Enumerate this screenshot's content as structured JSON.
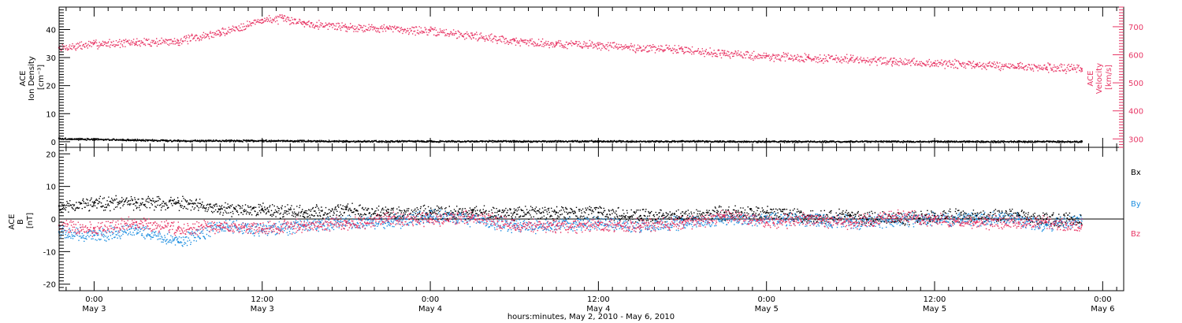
{
  "colors": {
    "black": "#000000",
    "velocity": "#e83766",
    "by": "#1f8fe0",
    "bz": "#e83766"
  },
  "x_axis": {
    "label": "hours:minutes, May  2, 2010 - May  6, 2010",
    "ticks": [
      {
        "hours": 0,
        "time": "0:00",
        "date": "May 3"
      },
      {
        "hours": 12,
        "time": "12:00",
        "date": "May 3"
      },
      {
        "hours": 24,
        "time": "0:00",
        "date": "May 4"
      },
      {
        "hours": 36,
        "time": "12:00",
        "date": "May 4"
      },
      {
        "hours": 48,
        "time": "0:00",
        "date": "May 5"
      },
      {
        "hours": 60,
        "time": "12:00",
        "date": "May 5"
      },
      {
        "hours": 72,
        "time": "0:00",
        "date": "May 6"
      }
    ]
  },
  "top_panel": {
    "left_label_lines": [
      "ACE",
      "Ion Density",
      "[cm⁻³]"
    ],
    "right_label_lines": [
      "ACE",
      "Velocity",
      "[km/s]"
    ],
    "left_ticks": [
      "0",
      "10",
      "20",
      "30",
      "40"
    ],
    "right_ticks": [
      "300",
      "400",
      "500",
      "600",
      "700"
    ]
  },
  "bottom_panel": {
    "left_label_lines": [
      "ACE",
      "B",
      "[nT]"
    ],
    "ticks": [
      "-20",
      "-10",
      "0",
      "10",
      "20"
    ],
    "legend": [
      "Bx",
      "By",
      "Bz"
    ]
  },
  "chart_data": [
    {
      "type": "scatter",
      "title": "",
      "xlabel": "hours:minutes, May  2, 2010 - May  6, 2010",
      "x_units": "hours from May 3 0:00 UT",
      "xlim": [
        -2.5,
        73.5
      ],
      "series": [
        {
          "name": "Ion Density",
          "axis": "left",
          "ylim": [
            -2,
            48
          ],
          "ylabel": "Ion Density [cm⁻³]",
          "x": [
            -2.5,
            0,
            6,
            12,
            18,
            24,
            30,
            36,
            42,
            48,
            54,
            60,
            66,
            70.5
          ],
          "y": [
            1.2,
            1.0,
            0.5,
            0.5,
            0.3,
            0.3,
            0.3,
            0.3,
            0.3,
            0.2,
            0.2,
            0.2,
            0.2,
            0.2
          ]
        },
        {
          "name": "Velocity",
          "axis": "right",
          "ylim": [
            270,
            770
          ],
          "ylabel": "Velocity [km/s]",
          "x": [
            -2.5,
            0,
            3,
            6,
            9,
            12,
            13.5,
            15,
            18,
            21,
            24,
            27,
            30,
            33,
            36,
            39,
            42,
            45,
            48,
            51,
            54,
            57,
            60,
            63,
            66,
            68,
            70.5
          ],
          "y": [
            625,
            640,
            645,
            650,
            680,
            725,
            730,
            715,
            700,
            695,
            685,
            670,
            650,
            640,
            635,
            625,
            620,
            605,
            595,
            590,
            585,
            575,
            570,
            565,
            560,
            555,
            550
          ]
        }
      ]
    },
    {
      "type": "scatter",
      "title": "",
      "xlabel": "hours:minutes, May  2, 2010 - May  6, 2010",
      "x_units": "hours from May 3 0:00 UT",
      "xlim": [
        -2.5,
        73.5
      ],
      "ylim": [
        -22,
        22
      ],
      "ylabel": "B [nT]",
      "series": [
        {
          "name": "Bx",
          "x": [
            -2.5,
            0,
            3,
            6,
            9,
            12,
            15,
            18,
            21,
            24,
            27,
            30,
            33,
            36,
            39,
            42,
            45,
            48,
            51,
            54,
            57,
            60,
            63,
            66,
            68,
            70.5
          ],
          "y": [
            4,
            5,
            5,
            5,
            3,
            3,
            2,
            3,
            2,
            2,
            2,
            2,
            2,
            2,
            1,
            1,
            2,
            2,
            1,
            1,
            0,
            1,
            1,
            1,
            0,
            0
          ]
        },
        {
          "name": "By",
          "x": [
            -2.5,
            0,
            3,
            6,
            9,
            12,
            15,
            18,
            21,
            24,
            27,
            30,
            33,
            36,
            39,
            42,
            45,
            48,
            51,
            54,
            57,
            60,
            63,
            66,
            68,
            70.5
          ],
          "y": [
            -4,
            -5,
            -3,
            -7,
            -2,
            -3,
            -2,
            -1,
            -1,
            1,
            0,
            -2,
            -2,
            -1,
            -2,
            -1,
            0,
            0,
            0,
            -1,
            0,
            0,
            0,
            0,
            -2,
            0
          ]
        },
        {
          "name": "Bz",
          "x": [
            -2.5,
            0,
            3,
            6,
            9,
            12,
            15,
            18,
            21,
            24,
            27,
            30,
            33,
            36,
            39,
            42,
            45,
            48,
            51,
            54,
            57,
            60,
            63,
            66,
            68,
            70.5
          ],
          "y": [
            -2,
            -3,
            -1,
            -3,
            -2,
            -3,
            -2,
            -1,
            0,
            0,
            1,
            -2,
            -2,
            -2,
            -2,
            -1,
            1,
            -1,
            0,
            -1,
            1,
            0,
            -1,
            -1,
            -1,
            -2
          ]
        }
      ]
    }
  ]
}
